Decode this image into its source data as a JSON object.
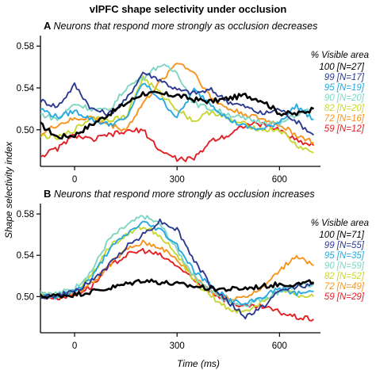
{
  "figure_title": "vlPFC shape selectivity under occlusion",
  "ylabel": "Shape selectivity index",
  "xlabel": "Time (ms)",
  "legend_title": "% Visible area",
  "colors": {
    "100": "#000000",
    "99": "#2b3990",
    "95": "#27a9e1",
    "90": "#7fd6c2",
    "82": "#c8d630",
    "72": "#f7941d",
    "59": "#e31e24"
  },
  "chart_data": [
    {
      "type": "line",
      "panel": "A",
      "title": "Neurons that respond more strongly as occlusion decreases",
      "xlabel": "",
      "ylabel": "Shape selectivity index",
      "xlim": [
        -100,
        720
      ],
      "ylim": [
        0.465,
        0.59
      ],
      "xticks": [
        0,
        300,
        600
      ],
      "yticks": [
        0.5,
        0.54,
        0.58
      ],
      "legend_placement": "right",
      "x": [
        -100,
        -50,
        0,
        50,
        100,
        150,
        200,
        250,
        300,
        350,
        400,
        450,
        500,
        550,
        600,
        650,
        700
      ],
      "series": [
        {
          "name": "100 [N=27]",
          "color_key": "100",
          "values": [
            0.505,
            0.493,
            0.495,
            0.505,
            0.515,
            0.525,
            0.535,
            0.534,
            0.533,
            0.529,
            0.527,
            0.53,
            0.533,
            0.528,
            0.516,
            0.515,
            0.52
          ]
        },
        {
          "name": "99 [N=17]",
          "color_key": "99",
          "values": [
            0.528,
            0.522,
            0.543,
            0.52,
            0.515,
            0.528,
            0.555,
            0.548,
            0.538,
            0.535,
            0.538,
            0.527,
            0.522,
            0.515,
            0.52,
            0.508,
            0.495
          ]
        },
        {
          "name": "95 [N=19]",
          "color_key": "95",
          "values": [
            0.52,
            0.512,
            0.518,
            0.51,
            0.505,
            0.51,
            0.545,
            0.53,
            0.512,
            0.538,
            0.525,
            0.51,
            0.503,
            0.5,
            0.508,
            0.523,
            0.51
          ]
        },
        {
          "name": "90 [N=20]",
          "color_key": "90",
          "values": [
            0.515,
            0.51,
            0.525,
            0.52,
            0.518,
            0.54,
            0.55,
            0.562,
            0.555,
            0.525,
            0.52,
            0.515,
            0.51,
            0.508,
            0.505,
            0.515,
            0.52
          ]
        },
        {
          "name": "82 [N=20]",
          "color_key": "82",
          "values": [
            0.495,
            0.492,
            0.5,
            0.512,
            0.51,
            0.512,
            0.55,
            0.535,
            0.52,
            0.508,
            0.518,
            0.51,
            0.505,
            0.5,
            0.5,
            0.485,
            0.478
          ]
        },
        {
          "name": "72 [N=16]",
          "color_key": "72",
          "values": [
            0.495,
            0.505,
            0.51,
            0.512,
            0.505,
            0.5,
            0.525,
            0.545,
            0.565,
            0.555,
            0.53,
            0.52,
            0.515,
            0.51,
            0.505,
            0.495,
            0.488
          ]
        },
        {
          "name": "59 [N=12]",
          "color_key": "59",
          "values": [
            0.475,
            0.482,
            0.495,
            0.49,
            0.495,
            0.498,
            0.5,
            0.48,
            0.472,
            0.472,
            0.49,
            0.495,
            0.505,
            0.505,
            0.5,
            0.49,
            0.485
          ]
        }
      ]
    },
    {
      "type": "line",
      "panel": "B",
      "title": "Neurons that respond more strongly as occlusion increases",
      "xlabel": "Time (ms)",
      "ylabel": "Shape selectivity index",
      "xlim": [
        -100,
        720
      ],
      "ylim": [
        0.465,
        0.59
      ],
      "xticks": [
        0,
        300,
        600
      ],
      "yticks": [
        0.5,
        0.54,
        0.58
      ],
      "legend_placement": "right",
      "x": [
        -100,
        -50,
        0,
        50,
        100,
        150,
        200,
        250,
        300,
        350,
        400,
        450,
        500,
        550,
        600,
        650,
        700
      ],
      "series": [
        {
          "name": "100 [N=71]",
          "color_key": "100",
          "values": [
            0.5,
            0.501,
            0.502,
            0.505,
            0.508,
            0.512,
            0.516,
            0.514,
            0.512,
            0.51,
            0.508,
            0.507,
            0.508,
            0.51,
            0.512,
            0.512,
            0.514
          ]
        },
        {
          "name": "99 [N=55]",
          "color_key": "99",
          "values": [
            0.5,
            0.501,
            0.505,
            0.515,
            0.53,
            0.548,
            0.56,
            0.573,
            0.565,
            0.535,
            0.51,
            0.495,
            0.48,
            0.49,
            0.505,
            0.51,
            0.512
          ]
        },
        {
          "name": "95 [N=35]",
          "color_key": "95",
          "values": [
            0.501,
            0.5,
            0.505,
            0.518,
            0.545,
            0.56,
            0.572,
            0.565,
            0.55,
            0.525,
            0.51,
            0.497,
            0.492,
            0.5,
            0.508,
            0.503,
            0.505
          ]
        },
        {
          "name": "90 [N=59]",
          "color_key": "90",
          "values": [
            0.505,
            0.503,
            0.508,
            0.525,
            0.555,
            0.568,
            0.578,
            0.57,
            0.545,
            0.52,
            0.505,
            0.495,
            0.492,
            0.498,
            0.505,
            0.51,
            0.512
          ]
        },
        {
          "name": "82 [N=52]",
          "color_key": "82",
          "values": [
            0.502,
            0.5,
            0.505,
            0.52,
            0.548,
            0.56,
            0.568,
            0.56,
            0.54,
            0.515,
            0.5,
            0.488,
            0.485,
            0.495,
            0.505,
            0.502,
            0.5
          ]
        },
        {
          "name": "72 [N=49]",
          "color_key": "72",
          "values": [
            0.5,
            0.501,
            0.503,
            0.512,
            0.53,
            0.545,
            0.552,
            0.548,
            0.535,
            0.52,
            0.505,
            0.498,
            0.5,
            0.508,
            0.525,
            0.54,
            0.53
          ]
        },
        {
          "name": "59 [N=29]",
          "color_key": "59",
          "values": [
            0.5,
            0.499,
            0.502,
            0.51,
            0.528,
            0.54,
            0.545,
            0.54,
            0.53,
            0.515,
            0.505,
            0.495,
            0.49,
            0.49,
            0.485,
            0.48,
            0.478
          ]
        }
      ]
    }
  ]
}
